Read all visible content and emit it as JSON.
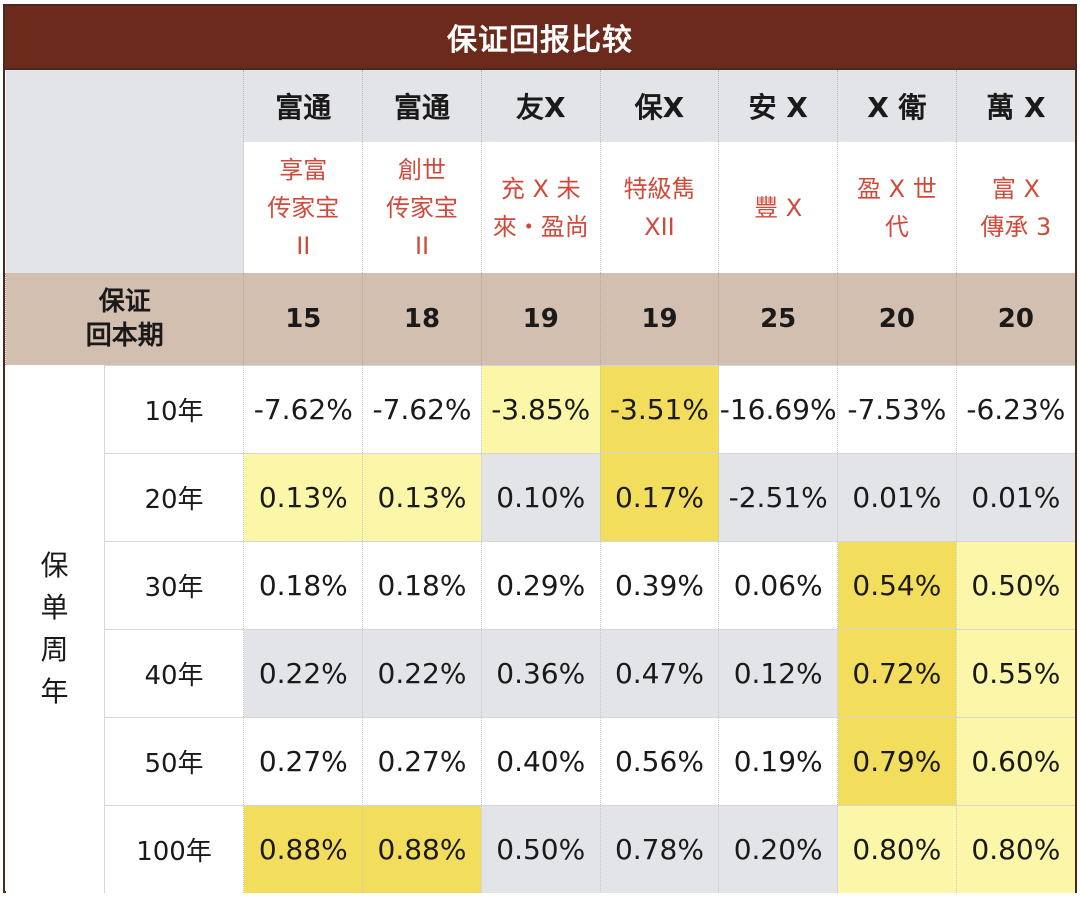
{
  "title": "保证回报比较",
  "companies": [
    "富通",
    "富通",
    "友X",
    "保X",
    "安 X",
    "X 衛",
    "萬 X"
  ],
  "products": [
    [
      "享富",
      "传家宝",
      "II"
    ],
    [
      "創世",
      "传家宝",
      "II"
    ],
    [
      "充 X 未",
      "來・盈尚"
    ],
    [
      "特級雋",
      "XII"
    ],
    [
      "豐 X"
    ],
    [
      "盈 X 世",
      "代"
    ],
    [
      "富 X",
      "傳承 3"
    ]
  ],
  "period_label_line1": "保证",
  "period_label_line2": "回本期",
  "periods": [
    "15",
    "18",
    "19",
    "19",
    "25",
    "20",
    "20"
  ],
  "side_label_chars": [
    "保",
    "单",
    "周",
    "年"
  ],
  "rows": [
    {
      "year": "10年",
      "values": [
        "-7.62%",
        "-7.62%",
        "-3.85%",
        "-3.51%",
        "-16.69%",
        "-7.53%",
        "-6.23%"
      ]
    },
    {
      "year": "20年",
      "values": [
        "0.13%",
        "0.13%",
        "0.10%",
        "0.17%",
        "-2.51%",
        "0.01%",
        "0.01%"
      ]
    },
    {
      "year": "30年",
      "values": [
        "0.18%",
        "0.18%",
        "0.29%",
        "0.39%",
        "0.06%",
        "0.54%",
        "0.50%"
      ]
    },
    {
      "year": "40年",
      "values": [
        "0.22%",
        "0.22%",
        "0.36%",
        "0.47%",
        "0.12%",
        "0.72%",
        "0.55%"
      ]
    },
    {
      "year": "50年",
      "values": [
        "0.27%",
        "0.27%",
        "0.40%",
        "0.56%",
        "0.19%",
        "0.79%",
        "0.60%"
      ]
    },
    {
      "year": "100年",
      "values": [
        "0.88%",
        "0.88%",
        "0.50%",
        "0.78%",
        "0.20%",
        "0.80%",
        "0.80%"
      ]
    }
  ],
  "cell_highlights": [
    [
      "white",
      "white",
      "lightyellow",
      "yellow",
      "white",
      "white",
      "white"
    ],
    [
      "lightyellow",
      "lightyellow",
      "gray",
      "yellow",
      "gray",
      "gray",
      "gray"
    ],
    [
      "white",
      "white",
      "white",
      "white",
      "white",
      "yellow",
      "lightyellow"
    ],
    [
      "gray",
      "gray",
      "gray",
      "gray",
      "gray",
      "yellow",
      "lightyellow"
    ],
    [
      "white",
      "white",
      "white",
      "white",
      "white",
      "yellow",
      "lightyellow"
    ],
    [
      "yellow",
      "yellow",
      "gray",
      "gray",
      "gray",
      "lightyellow",
      "lightyellow"
    ]
  ],
  "colors": {
    "title_bg": "#6b2a1b",
    "period_bg": "#d3bfb0",
    "product_text": "#d04a3a",
    "yellow": "#f3dd5d",
    "lightyellow": "#fbf6a8",
    "gray": "#e3e4e8"
  }
}
